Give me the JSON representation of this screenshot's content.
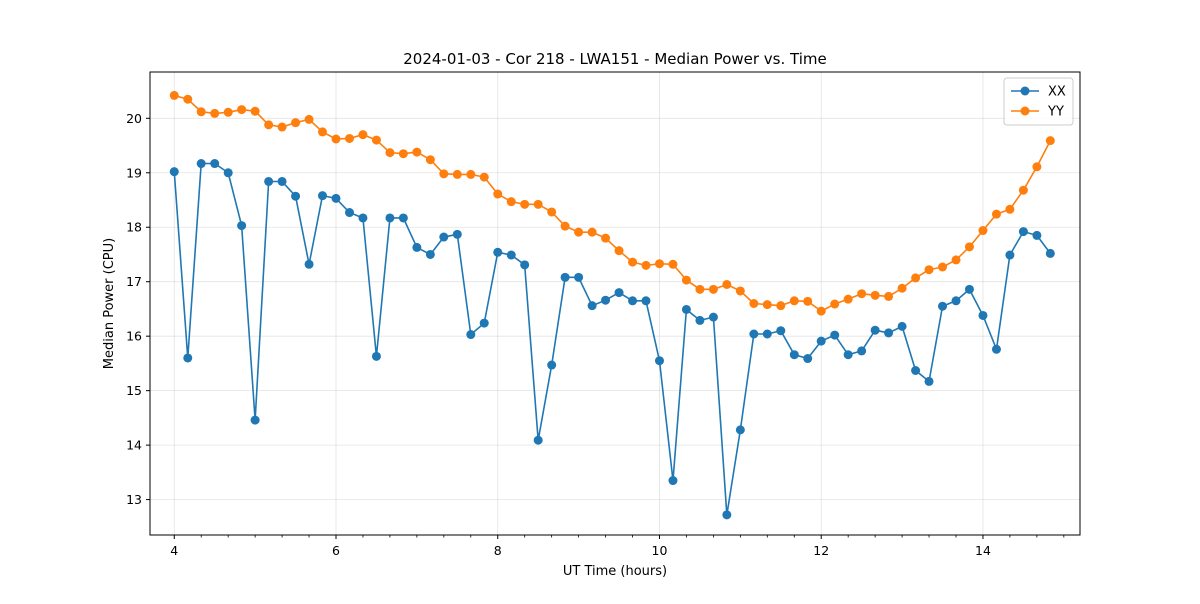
{
  "chart_data": {
    "type": "line",
    "title": "2024-01-03 - Cor 218 - LWA151 - Median Power vs. Time",
    "xlabel": "UT Time (hours)",
    "ylabel": "Median Power (CPU)",
    "xlim": [
      3.7,
      15.2
    ],
    "ylim": [
      12.35,
      20.85
    ],
    "xticks": [
      4,
      6,
      8,
      10,
      12,
      14
    ],
    "yticks": [
      13,
      14,
      15,
      16,
      17,
      18,
      19,
      20
    ],
    "grid": true,
    "legend_position": "top-right",
    "x": [
      4.0,
      4.167,
      4.333,
      4.5,
      4.667,
      4.833,
      5.0,
      5.167,
      5.333,
      5.5,
      5.667,
      5.833,
      6.0,
      6.167,
      6.333,
      6.5,
      6.667,
      6.833,
      7.0,
      7.167,
      7.333,
      7.5,
      7.667,
      7.833,
      8.0,
      8.167,
      8.333,
      8.5,
      8.667,
      8.833,
      9.0,
      9.167,
      9.333,
      9.5,
      9.667,
      9.833,
      10.0,
      10.167,
      10.333,
      10.5,
      10.667,
      10.833,
      11.0,
      11.167,
      11.333,
      11.5,
      11.667,
      11.833,
      12.0,
      12.167,
      12.333,
      12.5,
      12.667,
      12.833,
      13.0,
      13.167,
      13.333,
      13.5,
      13.667,
      13.833,
      14.0,
      14.167,
      14.333,
      14.5,
      14.667,
      14.833
    ],
    "series": [
      {
        "name": "XX",
        "color": "#1f77b4",
        "values": [
          19.02,
          15.6,
          19.17,
          19.17,
          19.0,
          18.03,
          14.46,
          18.84,
          18.84,
          18.57,
          17.32,
          18.58,
          18.53,
          18.27,
          18.17,
          15.63,
          18.17,
          18.17,
          17.63,
          17.5,
          17.82,
          17.87,
          16.03,
          16.24,
          17.54,
          17.49,
          17.31,
          14.09,
          15.47,
          17.08,
          17.08,
          16.56,
          16.66,
          16.8,
          16.65,
          16.65,
          15.55,
          13.35,
          16.49,
          16.29,
          16.35,
          12.72,
          14.28,
          16.04,
          16.04,
          16.1,
          15.66,
          15.59,
          15.91,
          16.02,
          15.66,
          15.73,
          16.11,
          16.06,
          16.18,
          15.37,
          15.17,
          16.55,
          16.65,
          16.86,
          16.38,
          15.76,
          17.49,
          17.92,
          17.85,
          17.52
        ]
      },
      {
        "name": "YY",
        "color": "#ff7f0e",
        "values": [
          20.42,
          20.35,
          20.12,
          20.09,
          20.11,
          20.16,
          20.13,
          19.88,
          19.84,
          19.92,
          19.98,
          19.75,
          19.62,
          19.63,
          19.7,
          19.6,
          19.37,
          19.35,
          19.38,
          19.24,
          18.98,
          18.97,
          18.97,
          18.92,
          18.61,
          18.47,
          18.42,
          18.42,
          18.28,
          18.02,
          17.91,
          17.91,
          17.8,
          17.57,
          17.36,
          17.3,
          17.33,
          17.32,
          17.03,
          16.86,
          16.86,
          16.95,
          16.83,
          16.6,
          16.58,
          16.56,
          16.65,
          16.64,
          16.46,
          16.59,
          16.68,
          16.78,
          16.75,
          16.73,
          16.88,
          17.07,
          17.22,
          17.27,
          17.4,
          17.64,
          17.94,
          18.24,
          18.33,
          18.68,
          19.11,
          19.59
        ]
      }
    ]
  }
}
